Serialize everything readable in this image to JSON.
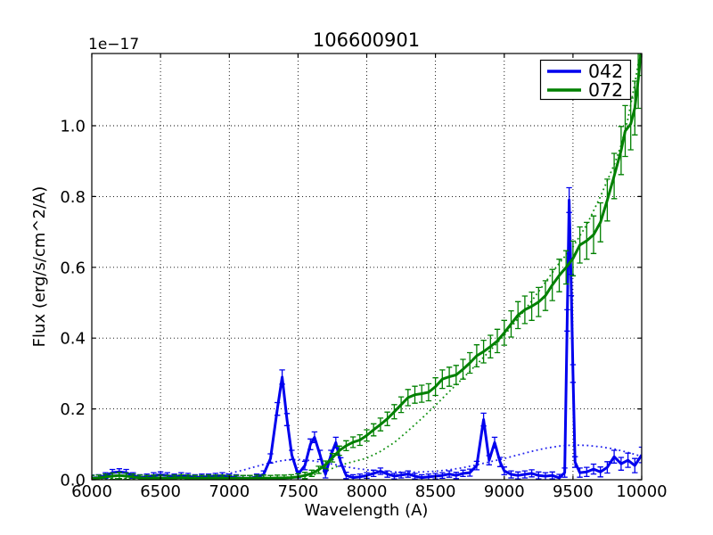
{
  "chart_data": {
    "type": "line",
    "title": "106600901",
    "xlabel": "Wavelength (A)",
    "ylabel": "Flux (erg/s/cm^2/A)",
    "y_offset_label": "1e−17",
    "xlim": [
      6000,
      10000
    ],
    "ylim": [
      0,
      1.204
    ],
    "grid": true,
    "x_ticks": [
      6000,
      6500,
      7000,
      7500,
      8000,
      8500,
      9000,
      9500,
      10000
    ],
    "x_tick_labels": [
      "6000",
      "6500",
      "7000",
      "7500",
      "8000",
      "8500",
      "9000",
      "9500",
      "10000"
    ],
    "y_ticks": [
      0.0,
      0.2,
      0.4,
      0.6,
      0.8,
      1.0
    ],
    "y_tick_labels": [
      "0.0",
      "0.2",
      "0.4",
      "0.6",
      "0.8",
      "1.0"
    ],
    "legend": {
      "position": "upper right",
      "entries": [
        {
          "label": "042",
          "color": "#0000ee"
        },
        {
          "label": "072",
          "color": "#008000"
        }
      ]
    },
    "series": [
      {
        "name": "042 model",
        "style": "dotted",
        "color": "#2222ee",
        "points": [
          [
            6000,
            0.002
          ],
          [
            6200,
            0.002
          ],
          [
            6400,
            0.003
          ],
          [
            6600,
            0.005
          ],
          [
            6800,
            0.008
          ],
          [
            6900,
            0.012
          ],
          [
            7000,
            0.018
          ],
          [
            7100,
            0.027
          ],
          [
            7200,
            0.038
          ],
          [
            7300,
            0.048
          ],
          [
            7400,
            0.055
          ],
          [
            7500,
            0.057
          ],
          [
            7600,
            0.054
          ],
          [
            7700,
            0.048
          ],
          [
            7800,
            0.04
          ],
          [
            7900,
            0.033
          ],
          [
            8000,
            0.028
          ],
          [
            8100,
            0.024
          ],
          [
            8200,
            0.022
          ],
          [
            8300,
            0.021
          ],
          [
            8400,
            0.022
          ],
          [
            8500,
            0.024
          ],
          [
            8600,
            0.028
          ],
          [
            8700,
            0.034
          ],
          [
            8800,
            0.042
          ],
          [
            8900,
            0.051
          ],
          [
            9000,
            0.06
          ],
          [
            9100,
            0.07
          ],
          [
            9200,
            0.08
          ],
          [
            9300,
            0.089
          ],
          [
            9400,
            0.095
          ],
          [
            9500,
            0.098
          ],
          [
            9600,
            0.097
          ],
          [
            9700,
            0.093
          ],
          [
            9800,
            0.087
          ],
          [
            9900,
            0.077
          ],
          [
            10000,
            0.066
          ]
        ]
      },
      {
        "name": "072 model",
        "style": "dotted",
        "color": "#119111",
        "points": [
          [
            6000,
            0.003
          ],
          [
            6500,
            0.003
          ],
          [
            7000,
            0.004
          ],
          [
            7300,
            0.005
          ],
          [
            7500,
            0.008
          ],
          [
            7600,
            0.012
          ],
          [
            7700,
            0.024
          ],
          [
            7800,
            0.04
          ],
          [
            7900,
            0.051
          ],
          [
            8000,
            0.061
          ],
          [
            8100,
            0.08
          ],
          [
            8200,
            0.105
          ],
          [
            8300,
            0.138
          ],
          [
            8400,
            0.173
          ],
          [
            8500,
            0.21
          ],
          [
            8600,
            0.249
          ],
          [
            8700,
            0.287
          ],
          [
            8800,
            0.326
          ],
          [
            8900,
            0.366
          ],
          [
            9000,
            0.408
          ],
          [
            9100,
            0.455
          ],
          [
            9200,
            0.505
          ],
          [
            9300,
            0.558
          ],
          [
            9400,
            0.612
          ],
          [
            9500,
            0.658
          ],
          [
            9600,
            0.72
          ],
          [
            9700,
            0.8
          ],
          [
            9800,
            0.89
          ],
          [
            9850,
            0.945
          ],
          [
            9900,
            1.02
          ],
          [
            9950,
            1.12
          ],
          [
            10000,
            1.23
          ]
        ]
      },
      {
        "name": "042",
        "style": "solid",
        "color": "#0000ee",
        "points": [
          [
            6000,
            0.005,
            0.008
          ],
          [
            6050,
            0.006,
            0.008
          ],
          [
            6100,
            0.012,
            0.008
          ],
          [
            6150,
            0.02,
            0.009
          ],
          [
            6200,
            0.022,
            0.009
          ],
          [
            6250,
            0.02,
            0.009
          ],
          [
            6300,
            0.012,
            0.008
          ],
          [
            6350,
            0.006,
            0.008
          ],
          [
            6400,
            0.008,
            0.008
          ],
          [
            6450,
            0.012,
            0.008
          ],
          [
            6500,
            0.014,
            0.008
          ],
          [
            6550,
            0.012,
            0.008
          ],
          [
            6600,
            0.008,
            0.008
          ],
          [
            6650,
            0.012,
            0.008
          ],
          [
            6700,
            0.01,
            0.008
          ],
          [
            6750,
            0.006,
            0.008
          ],
          [
            6800,
            0.008,
            0.008
          ],
          [
            6850,
            0.008,
            0.008
          ],
          [
            6900,
            0.01,
            0.008
          ],
          [
            6950,
            0.012,
            0.008
          ],
          [
            7000,
            0.008,
            0.008
          ],
          [
            7050,
            0.006,
            0.008
          ],
          [
            7100,
            0.004,
            0.008
          ],
          [
            7150,
            0.004,
            0.008
          ],
          [
            7200,
            0.008,
            0.008
          ],
          [
            7250,
            0.015,
            0.01
          ],
          [
            7300,
            0.06,
            0.013
          ],
          [
            7350,
            0.2,
            0.018
          ],
          [
            7385,
            0.29,
            0.02
          ],
          [
            7420,
            0.17,
            0.017
          ],
          [
            7455,
            0.07,
            0.013
          ],
          [
            7500,
            0.015,
            0.01
          ],
          [
            7550,
            0.04,
            0.012
          ],
          [
            7590,
            0.1,
            0.015
          ],
          [
            7620,
            0.12,
            0.015
          ],
          [
            7660,
            0.07,
            0.013
          ],
          [
            7700,
            0.015,
            0.01
          ],
          [
            7740,
            0.07,
            0.013
          ],
          [
            7775,
            0.105,
            0.015
          ],
          [
            7810,
            0.05,
            0.012
          ],
          [
            7850,
            0.012,
            0.009
          ],
          [
            7900,
            0.006,
            0.008
          ],
          [
            7950,
            0.008,
            0.008
          ],
          [
            8000,
            0.012,
            0.008
          ],
          [
            8050,
            0.018,
            0.009
          ],
          [
            8100,
            0.024,
            0.009
          ],
          [
            8150,
            0.016,
            0.009
          ],
          [
            8200,
            0.01,
            0.008
          ],
          [
            8250,
            0.013,
            0.008
          ],
          [
            8300,
            0.016,
            0.009
          ],
          [
            8350,
            0.01,
            0.008
          ],
          [
            8400,
            0.006,
            0.008
          ],
          [
            8450,
            0.008,
            0.008
          ],
          [
            8500,
            0.01,
            0.008
          ],
          [
            8550,
            0.012,
            0.008
          ],
          [
            8600,
            0.016,
            0.009
          ],
          [
            8650,
            0.012,
            0.009
          ],
          [
            8700,
            0.018,
            0.009
          ],
          [
            8750,
            0.02,
            0.01
          ],
          [
            8800,
            0.04,
            0.012
          ],
          [
            8850,
            0.17,
            0.018
          ],
          [
            8890,
            0.055,
            0.013
          ],
          [
            8930,
            0.105,
            0.015
          ],
          [
            8970,
            0.05,
            0.013
          ],
          [
            9000,
            0.025,
            0.011
          ],
          [
            9050,
            0.015,
            0.01
          ],
          [
            9100,
            0.012,
            0.01
          ],
          [
            9150,
            0.015,
            0.01
          ],
          [
            9200,
            0.018,
            0.01
          ],
          [
            9250,
            0.012,
            0.01
          ],
          [
            9300,
            0.01,
            0.01
          ],
          [
            9350,
            0.012,
            0.01
          ],
          [
            9400,
            0.005,
            0.01
          ],
          [
            9440,
            0.02,
            0.013
          ],
          [
            9458,
            0.45,
            0.03
          ],
          [
            9472,
            0.79,
            0.035
          ],
          [
            9487,
            0.55,
            0.03
          ],
          [
            9500,
            0.3,
            0.025
          ],
          [
            9515,
            0.05,
            0.015
          ],
          [
            9550,
            0.02,
            0.013
          ],
          [
            9600,
            0.022,
            0.013
          ],
          [
            9650,
            0.03,
            0.014
          ],
          [
            9700,
            0.022,
            0.014
          ],
          [
            9750,
            0.035,
            0.016
          ],
          [
            9800,
            0.065,
            0.018
          ],
          [
            9850,
            0.045,
            0.018
          ],
          [
            9900,
            0.055,
            0.02
          ],
          [
            9950,
            0.04,
            0.02
          ],
          [
            10000,
            0.07,
            0.022
          ]
        ]
      },
      {
        "name": "072",
        "style": "solid",
        "color": "#008000",
        "points": [
          [
            6000,
            0.004,
            0.008
          ],
          [
            6050,
            0.005,
            0.008
          ],
          [
            6100,
            0.008,
            0.008
          ],
          [
            6150,
            0.01,
            0.009
          ],
          [
            6200,
            0.012,
            0.009
          ],
          [
            6250,
            0.01,
            0.009
          ],
          [
            6300,
            0.008,
            0.008
          ],
          [
            6350,
            0.005,
            0.008
          ],
          [
            6400,
            0.004,
            0.008
          ],
          [
            6450,
            0.005,
            0.008
          ],
          [
            6500,
            0.005,
            0.008
          ],
          [
            6550,
            0.004,
            0.008
          ],
          [
            6600,
            0.005,
            0.008
          ],
          [
            6650,
            0.006,
            0.008
          ],
          [
            6700,
            0.005,
            0.008
          ],
          [
            6750,
            0.004,
            0.008
          ],
          [
            6800,
            0.004,
            0.008
          ],
          [
            6850,
            0.005,
            0.008
          ],
          [
            6900,
            0.005,
            0.008
          ],
          [
            6950,
            0.005,
            0.008
          ],
          [
            7000,
            0.004,
            0.008
          ],
          [
            7050,
            0.004,
            0.008
          ],
          [
            7100,
            0.004,
            0.008
          ],
          [
            7150,
            0.004,
            0.008
          ],
          [
            7200,
            0.005,
            0.008
          ],
          [
            7250,
            0.005,
            0.008
          ],
          [
            7300,
            0.004,
            0.008
          ],
          [
            7350,
            0.005,
            0.008
          ],
          [
            7400,
            0.005,
            0.008
          ],
          [
            7450,
            0.006,
            0.008
          ],
          [
            7500,
            0.008,
            0.009
          ],
          [
            7550,
            0.012,
            0.009
          ],
          [
            7600,
            0.018,
            0.009
          ],
          [
            7650,
            0.028,
            0.01
          ],
          [
            7700,
            0.042,
            0.011
          ],
          [
            7750,
            0.062,
            0.012
          ],
          [
            7800,
            0.082,
            0.013
          ],
          [
            7850,
            0.096,
            0.014
          ],
          [
            7900,
            0.106,
            0.015
          ],
          [
            7950,
            0.112,
            0.015
          ],
          [
            8000,
            0.125,
            0.016
          ],
          [
            8050,
            0.141,
            0.017
          ],
          [
            8100,
            0.156,
            0.018
          ],
          [
            8150,
            0.172,
            0.019
          ],
          [
            8200,
            0.192,
            0.02
          ],
          [
            8250,
            0.212,
            0.022
          ],
          [
            8300,
            0.232,
            0.023
          ],
          [
            8350,
            0.24,
            0.024
          ],
          [
            8400,
            0.243,
            0.024
          ],
          [
            8450,
            0.247,
            0.024
          ],
          [
            8500,
            0.263,
            0.025
          ],
          [
            8550,
            0.284,
            0.026
          ],
          [
            8600,
            0.291,
            0.027
          ],
          [
            8650,
            0.296,
            0.027
          ],
          [
            8700,
            0.312,
            0.028
          ],
          [
            8750,
            0.33,
            0.029
          ],
          [
            8800,
            0.35,
            0.031
          ],
          [
            8850,
            0.362,
            0.032
          ],
          [
            8900,
            0.376,
            0.032
          ],
          [
            8950,
            0.392,
            0.033
          ],
          [
            9000,
            0.415,
            0.035
          ],
          [
            9050,
            0.44,
            0.037
          ],
          [
            9100,
            0.465,
            0.038
          ],
          [
            9150,
            0.48,
            0.039
          ],
          [
            9200,
            0.49,
            0.04
          ],
          [
            9250,
            0.502,
            0.041
          ],
          [
            9300,
            0.52,
            0.042
          ],
          [
            9350,
            0.55,
            0.044
          ],
          [
            9400,
            0.577,
            0.046
          ],
          [
            9450,
            0.6,
            0.047
          ],
          [
            9500,
            0.625,
            0.049
          ],
          [
            9550,
            0.663,
            0.051
          ],
          [
            9600,
            0.675,
            0.052
          ],
          [
            9650,
            0.692,
            0.053
          ],
          [
            9700,
            0.727,
            0.055
          ],
          [
            9750,
            0.79,
            0.059
          ],
          [
            9800,
            0.858,
            0.064
          ],
          [
            9850,
            0.93,
            0.068
          ],
          [
            9880,
            0.985,
            0.072
          ],
          [
            9920,
            1.005,
            0.073
          ],
          [
            9950,
            1.05,
            0.076
          ],
          [
            9975,
            1.13,
            0.081
          ],
          [
            10000,
            1.23,
            0.088
          ]
        ]
      }
    ]
  }
}
